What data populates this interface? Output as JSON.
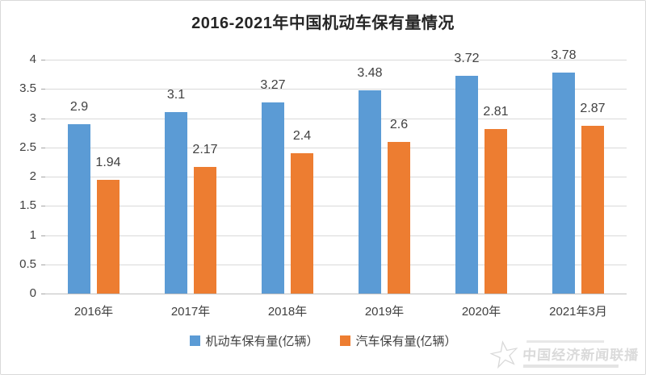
{
  "title": "2016-2021年中国机动车保有量情况",
  "colors": {
    "series1": "#5B9BD5",
    "series2": "#ED7D31",
    "gridline": "#D9D9D9",
    "axis_line": "#BFBFBF",
    "tick": "#A6A6A6",
    "label_text": "#404040",
    "title_text": "#262626",
    "frame_border": "#D9D9D9",
    "background": "#FFFFFF",
    "watermark": "#D2D2D2"
  },
  "chart_data": {
    "type": "bar",
    "title": "2016-2021年中国机动车保有量情况",
    "categories": [
      "2016年",
      "2017年",
      "2018年",
      "2019年",
      "2020年",
      "2021年3月"
    ],
    "series": [
      {
        "name": "机动车保有量(亿辆）",
        "color": "#5B9BD5",
        "values": [
          2.9,
          3.1,
          3.27,
          3.48,
          3.72,
          3.78
        ]
      },
      {
        "name": "汽车保有量(亿辆）",
        "color": "#ED7D31",
        "values": [
          1.94,
          2.17,
          2.4,
          2.6,
          2.81,
          2.87
        ]
      }
    ],
    "xlabel": "",
    "ylabel": "",
    "ylim": [
      0,
      4
    ],
    "yticks": [
      0,
      0.5,
      1,
      1.5,
      2,
      2.5,
      3,
      3.5,
      4
    ],
    "grid": true,
    "legend_position": "bottom",
    "data_labels": true
  },
  "watermark": {
    "star_glyph": "☆",
    "text": "中国经济新闻联播"
  }
}
